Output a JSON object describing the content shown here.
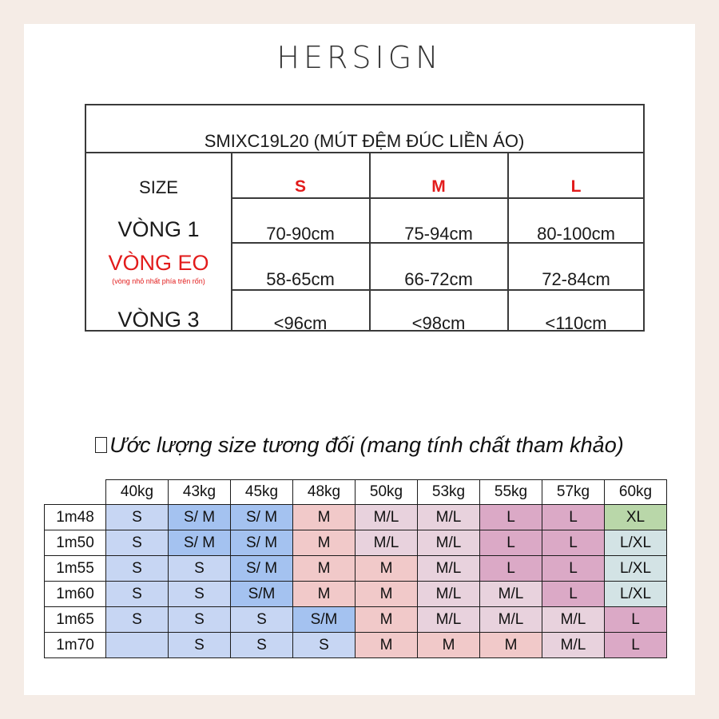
{
  "brand": "HERSIGN",
  "size_table": {
    "title": "SMIXC19L20 (MÚT ĐỆM ĐÚC LIỀN ÁO)",
    "size_label": "SIZE",
    "sizes": [
      "S",
      "M",
      "L"
    ],
    "rows": [
      {
        "label": "VÒNG 1",
        "note": "",
        "values": [
          "70-90cm",
          "75-94cm",
          "80-100cm"
        ]
      },
      {
        "label": "VÒNG EO",
        "note": "(vòng nhỏ nhất phía trên rốn)",
        "values": [
          "58-65cm",
          "66-72cm",
          "72-84cm"
        ]
      },
      {
        "label": "VÒNG 3",
        "note": "",
        "values": [
          "<96cm",
          "<98cm",
          "<110cm"
        ]
      }
    ],
    "accent_color": "#e21b1b"
  },
  "estimate": {
    "heading": "Ước lượng size tương đối (mang tính chất tham khảo)",
    "weights": [
      "40kg",
      "43kg",
      "45kg",
      "48kg",
      "50kg",
      "53kg",
      "55kg",
      "57kg",
      "60kg"
    ],
    "rows": [
      {
        "height": "1m48",
        "sizes": [
          "S",
          "S/ M",
          "S/ M",
          "M",
          "M/L",
          "M/L",
          "L",
          "L",
          "XL"
        ]
      },
      {
        "height": "1m50",
        "sizes": [
          "S",
          "S/ M",
          "S/ M",
          "M",
          "M/L",
          "M/L",
          "L",
          "L",
          "L/XL"
        ]
      },
      {
        "height": "1m55",
        "sizes": [
          "S",
          "S",
          "S/ M",
          "M",
          "M",
          "M/L",
          "L",
          "L",
          "L/XL"
        ]
      },
      {
        "height": "1m60",
        "sizes": [
          "S",
          "S",
          "S/M",
          "M",
          "M",
          "M/L",
          "M/L",
          "L",
          "L/XL"
        ]
      },
      {
        "height": "1m65",
        "sizes": [
          "S",
          "S",
          "S",
          "S/M",
          "M",
          "M/L",
          "M/L",
          "M/L",
          "L"
        ]
      },
      {
        "height": "1m70",
        "sizes": [
          "",
          "S",
          "S",
          "S",
          "M",
          "M",
          "M",
          "M/L",
          "L"
        ]
      }
    ],
    "cell_colors": [
      [
        "S",
        "SM",
        "SM",
        "M",
        "ML",
        "ML",
        "L",
        "L",
        "XL"
      ],
      [
        "S",
        "SM",
        "SM",
        "M",
        "ML",
        "ML",
        "L",
        "L",
        "LXL"
      ],
      [
        "S",
        "S",
        "SM",
        "M",
        "M",
        "ML",
        "L",
        "L",
        "LXL"
      ],
      [
        "S",
        "S",
        "SM",
        "M",
        "M",
        "ML",
        "ML",
        "L",
        "LXL"
      ],
      [
        "S",
        "S",
        "S",
        "SM",
        "M",
        "ML",
        "ML",
        "ML",
        "L"
      ],
      [
        "S",
        "S",
        "S",
        "S",
        "M",
        "M",
        "M",
        "ML",
        "L"
      ]
    ]
  }
}
